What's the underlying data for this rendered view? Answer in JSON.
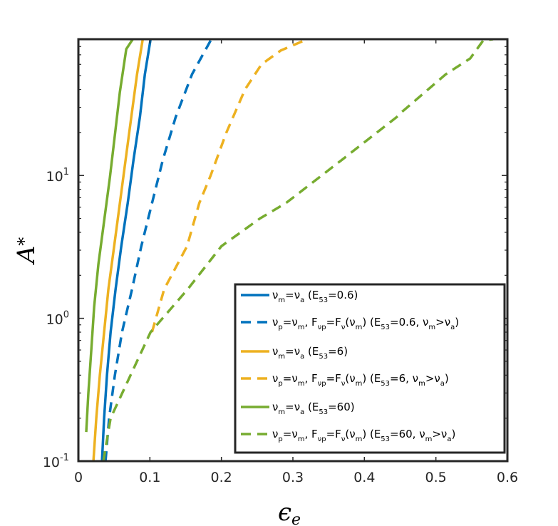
{
  "chart_data": {
    "type": "line",
    "title": "",
    "xlabel": "ϵ",
    "xlabel_sub": "e",
    "ylabel": "A",
    "ylabel_sup": "*",
    "xlim": [
      0,
      0.6
    ],
    "ylim": [
      0.1,
      90
    ],
    "yscale": "log",
    "grid": false,
    "x_ticks": [
      0,
      0.1,
      0.2,
      0.3,
      0.4,
      0.5,
      0.6
    ],
    "x_tick_labels": [
      "0",
      "0.1",
      "0.2",
      "0.3",
      "0.4",
      "0.5",
      "0.6"
    ],
    "y_ticks": [
      0.1,
      1,
      10
    ],
    "y_tick_labels": [
      {
        "base": "10",
        "exp": "-1"
      },
      {
        "base": "10",
        "exp": "0"
      },
      {
        "base": "10",
        "exp": "1"
      }
    ],
    "legend_position": "bottom-right",
    "series": [
      {
        "legend": {
          "pre": "ν",
          "parts": [
            [
              "m",
              "sub"
            ],
            [
              "=ν",
              ""
            ],
            [
              "a",
              "sub"
            ],
            [
              " (E",
              ""
            ],
            [
              "53",
              "sub"
            ],
            [
              "=0.6)",
              ""
            ]
          ]
        },
        "color": "#0072BD",
        "dash": "solid",
        "points": [
          [
            0.033,
            0.1
          ],
          [
            0.036,
            0.2
          ],
          [
            0.04,
            0.4
          ],
          [
            0.045,
            0.8
          ],
          [
            0.052,
            1.6
          ],
          [
            0.06,
            3.2
          ],
          [
            0.069,
            6.4
          ],
          [
            0.077,
            12.8
          ],
          [
            0.086,
            25.6
          ],
          [
            0.093,
            51.2
          ],
          [
            0.101,
            90
          ]
        ]
      },
      {
        "legend": {
          "pre": "ν",
          "parts": [
            [
              "p",
              "sub"
            ],
            [
              "=ν",
              ""
            ],
            [
              "m",
              "sub"
            ],
            [
              ", F",
              ""
            ],
            [
              "νp",
              "sub"
            ],
            [
              "=F",
              ""
            ],
            [
              "ν",
              "sub"
            ],
            [
              "(ν",
              ""
            ],
            [
              "m",
              "sub"
            ],
            [
              ") (E",
              ""
            ],
            [
              "53",
              "sub"
            ],
            [
              "=0.6, ν",
              ""
            ],
            [
              "m",
              "sub"
            ],
            [
              ">ν",
              ""
            ],
            [
              "a",
              "sub"
            ],
            [
              ")",
              ""
            ]
          ]
        },
        "color": "#0072BD",
        "dash": "dashed",
        "points": [
          [
            0.038,
            0.1
          ],
          [
            0.043,
            0.2
          ],
          [
            0.051,
            0.4
          ],
          [
            0.061,
            0.8
          ],
          [
            0.075,
            1.6
          ],
          [
            0.088,
            3.2
          ],
          [
            0.103,
            6.4
          ],
          [
            0.118,
            12.8
          ],
          [
            0.136,
            25.6
          ],
          [
            0.159,
            51.2
          ],
          [
            0.186,
            90
          ]
        ]
      },
      {
        "legend": {
          "pre": "ν",
          "parts": [
            [
              "m",
              "sub"
            ],
            [
              "=ν",
              ""
            ],
            [
              "a",
              "sub"
            ],
            [
              " (E",
              ""
            ],
            [
              "53",
              "sub"
            ],
            [
              "=6)",
              ""
            ]
          ]
        },
        "color": "#EDB120",
        "dash": "solid",
        "points": [
          [
            0.021,
            0.1
          ],
          [
            0.025,
            0.2
          ],
          [
            0.03,
            0.4
          ],
          [
            0.036,
            0.8
          ],
          [
            0.042,
            1.6
          ],
          [
            0.05,
            3.2
          ],
          [
            0.058,
            6.4
          ],
          [
            0.066,
            12.8
          ],
          [
            0.074,
            25.6
          ],
          [
            0.082,
            51.2
          ],
          [
            0.09,
            90
          ]
        ]
      },
      {
        "legend": {
          "pre": "ν",
          "parts": [
            [
              "p",
              "sub"
            ],
            [
              "=ν",
              ""
            ],
            [
              "m",
              "sub"
            ],
            [
              ", F",
              ""
            ],
            [
              "νp",
              "sub"
            ],
            [
              "=F",
              ""
            ],
            [
              "ν",
              "sub"
            ],
            [
              "(ν",
              ""
            ],
            [
              "m",
              "sub"
            ],
            [
              ") (E",
              ""
            ],
            [
              "53",
              "sub"
            ],
            [
              "=6, ν",
              ""
            ],
            [
              "m",
              "sub"
            ],
            [
              ">ν",
              ""
            ],
            [
              "a",
              "sub"
            ],
            [
              ")",
              ""
            ]
          ]
        },
        "color": "#EDB120",
        "dash": "dashed",
        "points": [
          [
            0.103,
            0.8
          ],
          [
            0.12,
            1.6
          ],
          [
            0.152,
            3.2
          ],
          [
            0.169,
            6.4
          ],
          [
            0.185,
            10.0
          ],
          [
            0.207,
            20.0
          ],
          [
            0.233,
            40.0
          ],
          [
            0.256,
            60.0
          ],
          [
            0.283,
            75.0
          ],
          [
            0.32,
            90
          ]
        ]
      },
      {
        "legend": {
          "pre": "ν",
          "parts": [
            [
              "m",
              "sub"
            ],
            [
              "=ν",
              ""
            ],
            [
              "a",
              "sub"
            ],
            [
              " (E",
              ""
            ],
            [
              "53",
              "sub"
            ],
            [
              "=60)",
              ""
            ]
          ]
        },
        "color": "#77AC30",
        "dash": "solid",
        "points": [
          [
            0.011,
            0.16
          ],
          [
            0.014,
            0.3
          ],
          [
            0.018,
            0.6
          ],
          [
            0.022,
            1.2
          ],
          [
            0.028,
            2.4
          ],
          [
            0.036,
            4.8
          ],
          [
            0.044,
            9.6
          ],
          [
            0.051,
            19.2
          ],
          [
            0.058,
            38.4
          ],
          [
            0.067,
            76.8
          ],
          [
            0.076,
            90
          ]
        ]
      },
      {
        "legend": {
          "pre": "ν",
          "parts": [
            [
              "p",
              "sub"
            ],
            [
              "=ν",
              ""
            ],
            [
              "m",
              "sub"
            ],
            [
              ", F",
              ""
            ],
            [
              "νp",
              "sub"
            ],
            [
              "=F",
              ""
            ],
            [
              "ν",
              "sub"
            ],
            [
              "(ν",
              ""
            ],
            [
              "m",
              "sub"
            ],
            [
              ") (E",
              ""
            ],
            [
              "53",
              "sub"
            ],
            [
              "=60, ν",
              ""
            ],
            [
              "m",
              "sub"
            ],
            [
              ">ν",
              ""
            ],
            [
              "a",
              "sub"
            ],
            [
              ")",
              ""
            ]
          ]
        },
        "color": "#77AC30",
        "dash": "dashed",
        "points": [
          [
            0.035,
            0.1
          ],
          [
            0.045,
            0.2
          ],
          [
            0.073,
            0.4
          ],
          [
            0.101,
            0.8
          ],
          [
            0.153,
            1.6
          ],
          [
            0.2,
            3.2
          ],
          [
            0.254,
            5.0
          ],
          [
            0.29,
            6.4
          ],
          [
            0.368,
            12.8
          ],
          [
            0.445,
            25.6
          ],
          [
            0.453,
            28.0
          ],
          [
            0.514,
            51.2
          ],
          [
            0.548,
            66.0
          ],
          [
            0.566,
            88.0
          ],
          [
            0.58,
            90
          ]
        ]
      }
    ]
  }
}
